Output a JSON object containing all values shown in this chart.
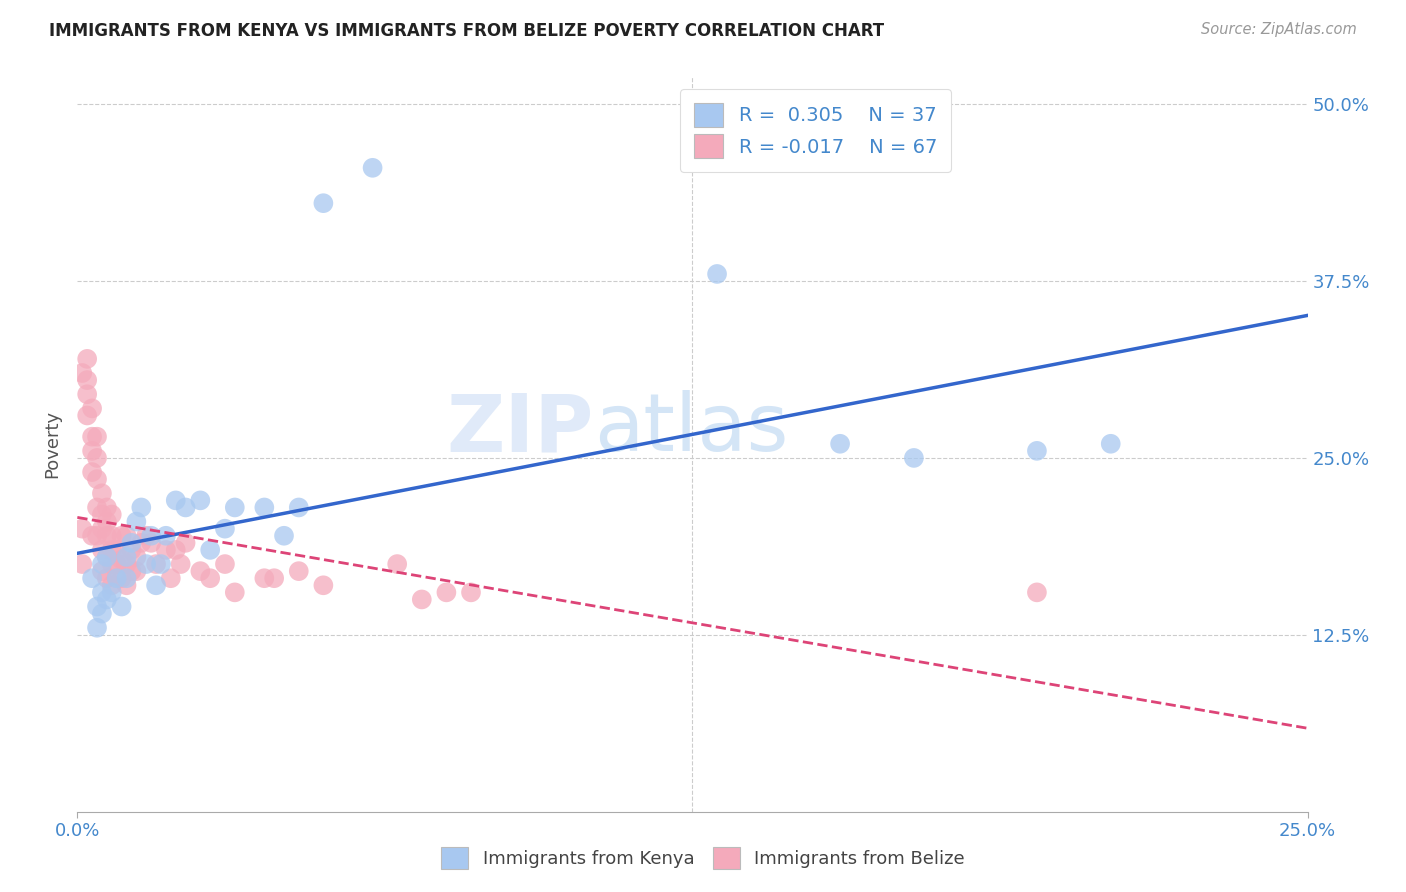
{
  "title": "IMMIGRANTS FROM KENYA VS IMMIGRANTS FROM BELIZE POVERTY CORRELATION CHART",
  "source": "Source: ZipAtlas.com",
  "ylabel_label": "Poverty",
  "xlim": [
    0.0,
    0.25
  ],
  "ylim": [
    0.0,
    0.52
  ],
  "kenya_R": 0.305,
  "kenya_N": 37,
  "belize_R": -0.017,
  "belize_N": 67,
  "kenya_color": "#a8c8f0",
  "belize_color": "#f4aabb",
  "kenya_line_color": "#3366cc",
  "belize_line_color": "#dd4477",
  "watermark_zip": "ZIP",
  "watermark_atlas": "atlas",
  "kenya_points_x": [
    0.003,
    0.004,
    0.004,
    0.005,
    0.005,
    0.005,
    0.006,
    0.006,
    0.007,
    0.008,
    0.009,
    0.01,
    0.01,
    0.011,
    0.012,
    0.013,
    0.014,
    0.015,
    0.016,
    0.017,
    0.018,
    0.02,
    0.022,
    0.025,
    0.027,
    0.03,
    0.032,
    0.038,
    0.042,
    0.045,
    0.05,
    0.06,
    0.13,
    0.155,
    0.17,
    0.195,
    0.21
  ],
  "kenya_points_y": [
    0.165,
    0.145,
    0.13,
    0.175,
    0.155,
    0.14,
    0.18,
    0.15,
    0.155,
    0.165,
    0.145,
    0.18,
    0.165,
    0.19,
    0.205,
    0.215,
    0.175,
    0.195,
    0.16,
    0.175,
    0.195,
    0.22,
    0.215,
    0.22,
    0.185,
    0.2,
    0.215,
    0.215,
    0.195,
    0.215,
    0.43,
    0.455,
    0.38,
    0.26,
    0.25,
    0.255,
    0.26
  ],
  "belize_points_x": [
    0.001,
    0.001,
    0.001,
    0.002,
    0.002,
    0.002,
    0.002,
    0.003,
    0.003,
    0.003,
    0.003,
    0.003,
    0.004,
    0.004,
    0.004,
    0.004,
    0.004,
    0.005,
    0.005,
    0.005,
    0.005,
    0.005,
    0.006,
    0.006,
    0.006,
    0.006,
    0.006,
    0.007,
    0.007,
    0.007,
    0.007,
    0.007,
    0.008,
    0.008,
    0.008,
    0.009,
    0.009,
    0.009,
    0.01,
    0.01,
    0.01,
    0.011,
    0.011,
    0.012,
    0.012,
    0.013,
    0.014,
    0.015,
    0.016,
    0.018,
    0.019,
    0.02,
    0.021,
    0.022,
    0.025,
    0.027,
    0.03,
    0.032,
    0.038,
    0.04,
    0.045,
    0.05,
    0.065,
    0.07,
    0.075,
    0.08,
    0.195
  ],
  "belize_points_y": [
    0.175,
    0.2,
    0.31,
    0.28,
    0.295,
    0.305,
    0.32,
    0.195,
    0.24,
    0.255,
    0.265,
    0.285,
    0.195,
    0.215,
    0.235,
    0.25,
    0.265,
    0.17,
    0.185,
    0.2,
    0.21,
    0.225,
    0.165,
    0.18,
    0.195,
    0.205,
    0.215,
    0.16,
    0.175,
    0.185,
    0.195,
    0.21,
    0.165,
    0.175,
    0.185,
    0.165,
    0.178,
    0.195,
    0.16,
    0.175,
    0.195,
    0.17,
    0.185,
    0.17,
    0.18,
    0.19,
    0.195,
    0.19,
    0.175,
    0.185,
    0.165,
    0.185,
    0.175,
    0.19,
    0.17,
    0.165,
    0.175,
    0.155,
    0.165,
    0.165,
    0.17,
    0.16,
    0.175,
    0.15,
    0.155,
    0.155,
    0.155
  ],
  "background_color": "#ffffff",
  "grid_color": "#cccccc",
  "yticks": [
    0.125,
    0.25,
    0.375,
    0.5
  ],
  "ytick_labels": [
    "12.5%",
    "25.0%",
    "37.5%",
    "50.0%"
  ],
  "xticks": [
    0.0,
    0.25
  ],
  "xtick_labels": [
    "0.0%",
    "25.0%"
  ]
}
